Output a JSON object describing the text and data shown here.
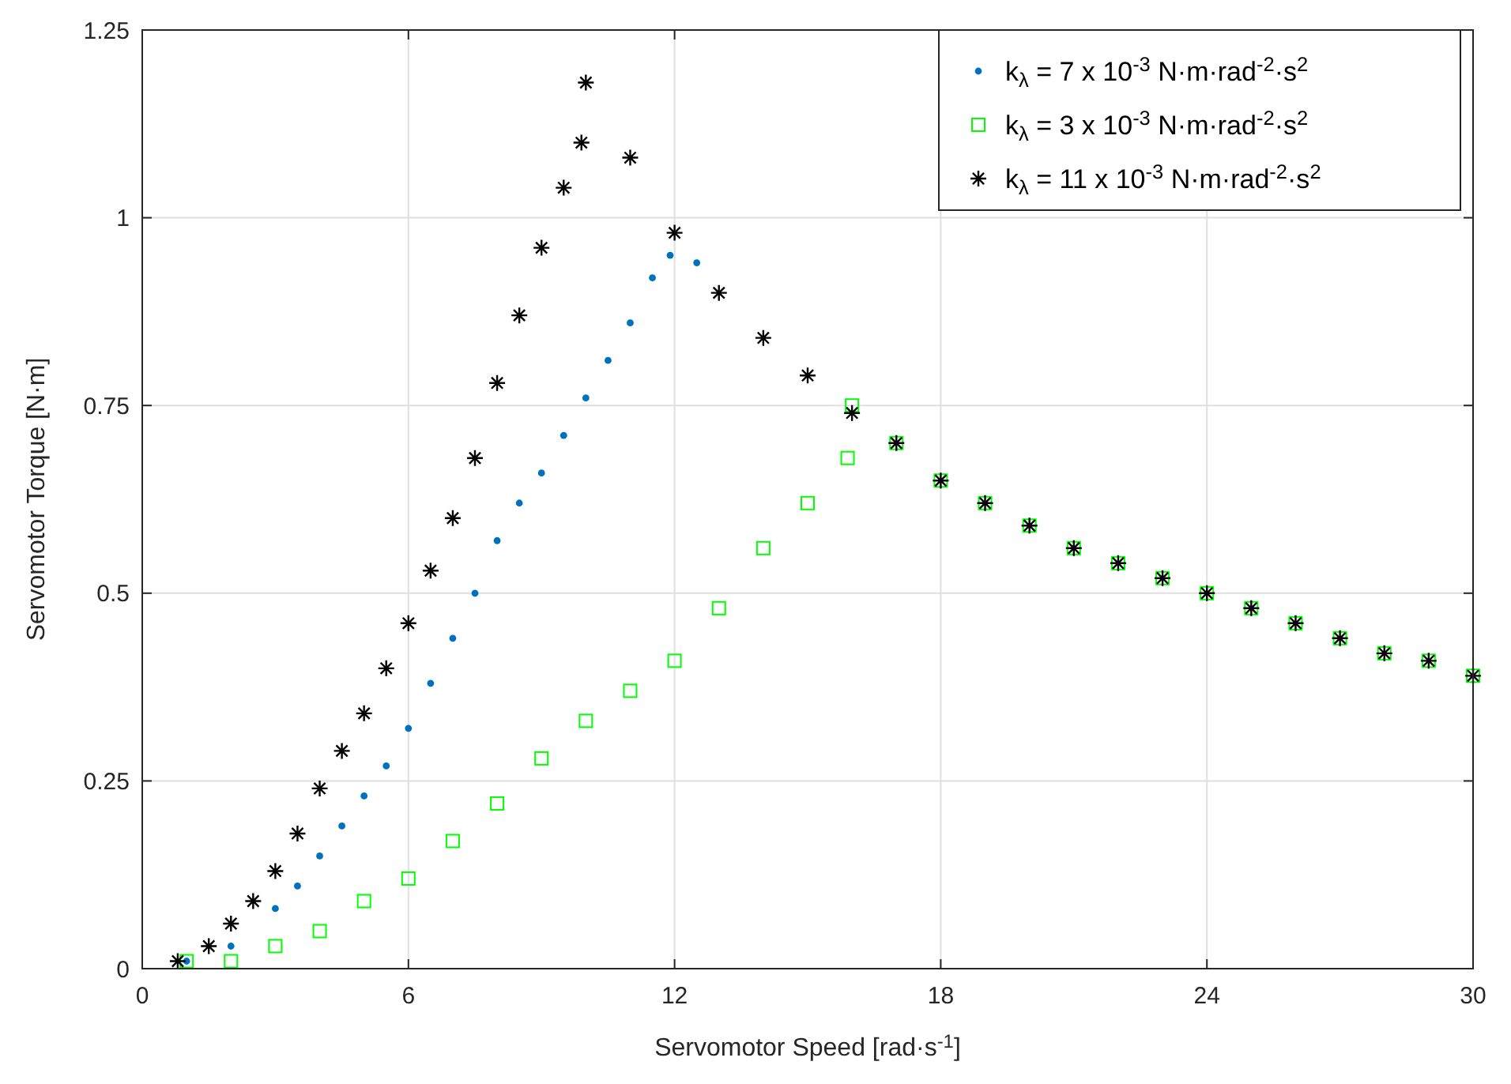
{
  "chart_data": {
    "type": "scatter",
    "xlabel": "Servomotor Speed [rad·s$^{-1}$]",
    "ylabel": "Servomotor Torque [N·m]",
    "xlim": [
      0,
      30
    ],
    "ylim": [
      0,
      1.25
    ],
    "xticks": [
      0,
      6,
      12,
      18,
      24,
      30
    ],
    "yticks": [
      0,
      0.25,
      0.5,
      0.75,
      1,
      1.25
    ],
    "grid": true,
    "legend": "top right",
    "series": [
      {
        "name": "k$_{λ}$ = 7 x 10$^{-3}$ N·m·rad$^{-2}$·s$^{2}$",
        "color": "#0072bd",
        "marker": "circle",
        "x": [
          1,
          2,
          3,
          3.5,
          4,
          4.5,
          5,
          5.5,
          6,
          6.5,
          7,
          7.5,
          8,
          8.5,
          9,
          9.5,
          10,
          10.5,
          11,
          11.5,
          11.9,
          12.5
        ],
        "values": [
          0.01,
          0.03,
          0.08,
          0.11,
          0.15,
          0.19,
          0.23,
          0.27,
          0.32,
          0.38,
          0.44,
          0.5,
          0.57,
          0.62,
          0.66,
          0.71,
          0.76,
          0.81,
          0.86,
          0.92,
          0.95,
          0.94
        ]
      },
      {
        "name": "k$_{λ}$ = 3 x 10$^{-3}$ N·m·rad$^{-2}$·s$^{2}$",
        "color": "#00ff00",
        "marker": "square",
        "x": [
          1,
          2,
          3,
          4,
          5,
          6,
          7,
          8,
          9,
          10,
          11,
          12,
          13,
          14,
          15,
          15.9,
          16,
          17,
          18,
          19,
          20,
          21,
          22,
          23,
          24,
          25,
          26,
          27,
          28,
          29,
          30
        ],
        "values": [
          0.01,
          0.01,
          0.03,
          0.05,
          0.09,
          0.12,
          0.17,
          0.22,
          0.28,
          0.33,
          0.37,
          0.41,
          0.48,
          0.56,
          0.62,
          0.68,
          0.75,
          0.7,
          0.65,
          0.62,
          0.59,
          0.56,
          0.54,
          0.52,
          0.5,
          0.48,
          0.46,
          0.44,
          0.42,
          0.41,
          0.39
        ]
      },
      {
        "name": "k$_{λ}$ = 11 x 10$^{-3}$ N·m·rad$^{-2}$·s$^{2}$",
        "color": "#000000",
        "marker": "cross",
        "x": [
          0.8,
          1.5,
          2,
          2.5,
          3,
          3.5,
          4,
          4.5,
          5,
          5.5,
          6,
          6.5,
          7,
          7.5,
          8,
          8.5,
          9,
          9.5,
          9.9,
          10,
          11,
          12,
          13,
          14,
          15,
          16,
          17,
          18,
          19,
          20,
          21,
          22,
          23,
          24,
          25,
          26,
          27,
          28,
          29,
          30
        ],
        "values": [
          0.01,
          0.03,
          0.06,
          0.09,
          0.13,
          0.18,
          0.24,
          0.29,
          0.34,
          0.4,
          0.46,
          0.53,
          0.6,
          0.68,
          0.78,
          0.87,
          0.96,
          1.04,
          1.1,
          1.18,
          1.08,
          0.98,
          0.9,
          0.84,
          0.79,
          0.74,
          0.7,
          0.65,
          0.62,
          0.59,
          0.56,
          0.54,
          0.52,
          0.5,
          0.48,
          0.46,
          0.44,
          0.42,
          0.41,
          0.39
        ]
      }
    ]
  }
}
